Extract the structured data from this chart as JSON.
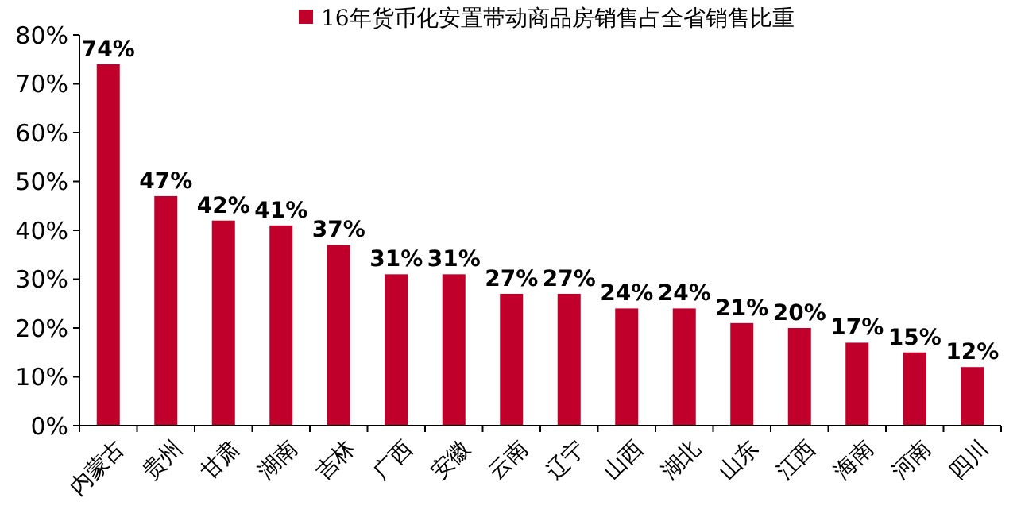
{
  "chart_data": {
    "type": "bar",
    "categories": [
      "内蒙古",
      "贵州",
      "甘肃",
      "湖南",
      "吉林",
      "广西",
      "安徽",
      "云南",
      "辽宁",
      "山西",
      "湖北",
      "山东",
      "江西",
      "海南",
      "河南",
      "四川"
    ],
    "series": [
      {
        "name": "16年货币化安置带动商品房销售占全省销售比重",
        "color": "#c0002a",
        "values": [
          74,
          47,
          42,
          41,
          37,
          31,
          31,
          27,
          27,
          24,
          24,
          21,
          20,
          17,
          15,
          12
        ],
        "value_labels": [
          "74%",
          "47%",
          "42%",
          "41%",
          "37%",
          "31%",
          "31%",
          "27%",
          "27%",
          "24%",
          "24%",
          "21%",
          "20%",
          "17%",
          "15%",
          "12%"
        ]
      }
    ],
    "ylim": [
      0,
      80
    ],
    "yticks": [
      {
        "value": 0,
        "label": "0%"
      },
      {
        "value": 10,
        "label": "10%"
      },
      {
        "value": 20,
        "label": "20%"
      },
      {
        "value": 30,
        "label": "30%"
      },
      {
        "value": 40,
        "label": "40%"
      },
      {
        "value": 50,
        "label": "50%"
      },
      {
        "value": 60,
        "label": "60%"
      },
      {
        "value": 70,
        "label": "70%"
      },
      {
        "value": 80,
        "label": "80%"
      }
    ],
    "grid": false,
    "legend": "top"
  }
}
